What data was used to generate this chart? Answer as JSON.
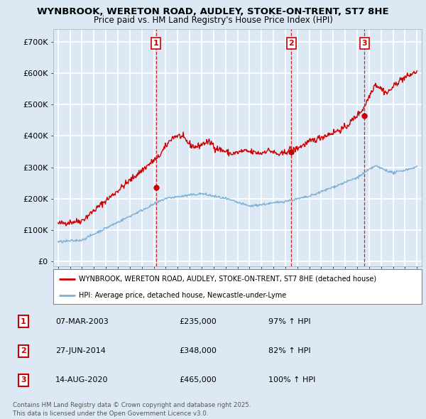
{
  "title1": "WYNBROOK, WERETON ROAD, AUDLEY, STOKE-ON-TRENT, ST7 8HE",
  "title2": "Price paid vs. HM Land Registry's House Price Index (HPI)",
  "bg_color": "#dce9f5",
  "plot_bg_color": "#dce9f5",
  "grid_color": "#ffffff",
  "red_color": "#cc0000",
  "blue_color": "#7bafd4",
  "yticks": [
    0,
    100000,
    200000,
    300000,
    400000,
    500000,
    600000,
    700000
  ],
  "ytick_labels": [
    "£0",
    "£100K",
    "£200K",
    "£300K",
    "£400K",
    "£500K",
    "£600K",
    "£700K"
  ],
  "xlim_start": 1994.6,
  "xlim_end": 2025.4,
  "ylim_min": -15000,
  "ylim_max": 740000,
  "sale_dates": [
    2003.18,
    2014.49,
    2020.62
  ],
  "sale_prices": [
    235000,
    348000,
    465000
  ],
  "sale_labels": [
    "1",
    "2",
    "3"
  ],
  "legend_entries": [
    "WYNBROOK, WERETON ROAD, AUDLEY, STOKE-ON-TRENT, ST7 8HE (detached house)",
    "HPI: Average price, detached house, Newcastle-under-Lyme"
  ],
  "table_data": [
    [
      "1",
      "07-MAR-2003",
      "£235,000",
      "97% ↑ HPI"
    ],
    [
      "2",
      "27-JUN-2014",
      "£348,000",
      "82% ↑ HPI"
    ],
    [
      "3",
      "14-AUG-2020",
      "£465,000",
      "100% ↑ HPI"
    ]
  ],
  "footer": "Contains HM Land Registry data © Crown copyright and database right 2025.\nThis data is licensed under the Open Government Licence v3.0."
}
